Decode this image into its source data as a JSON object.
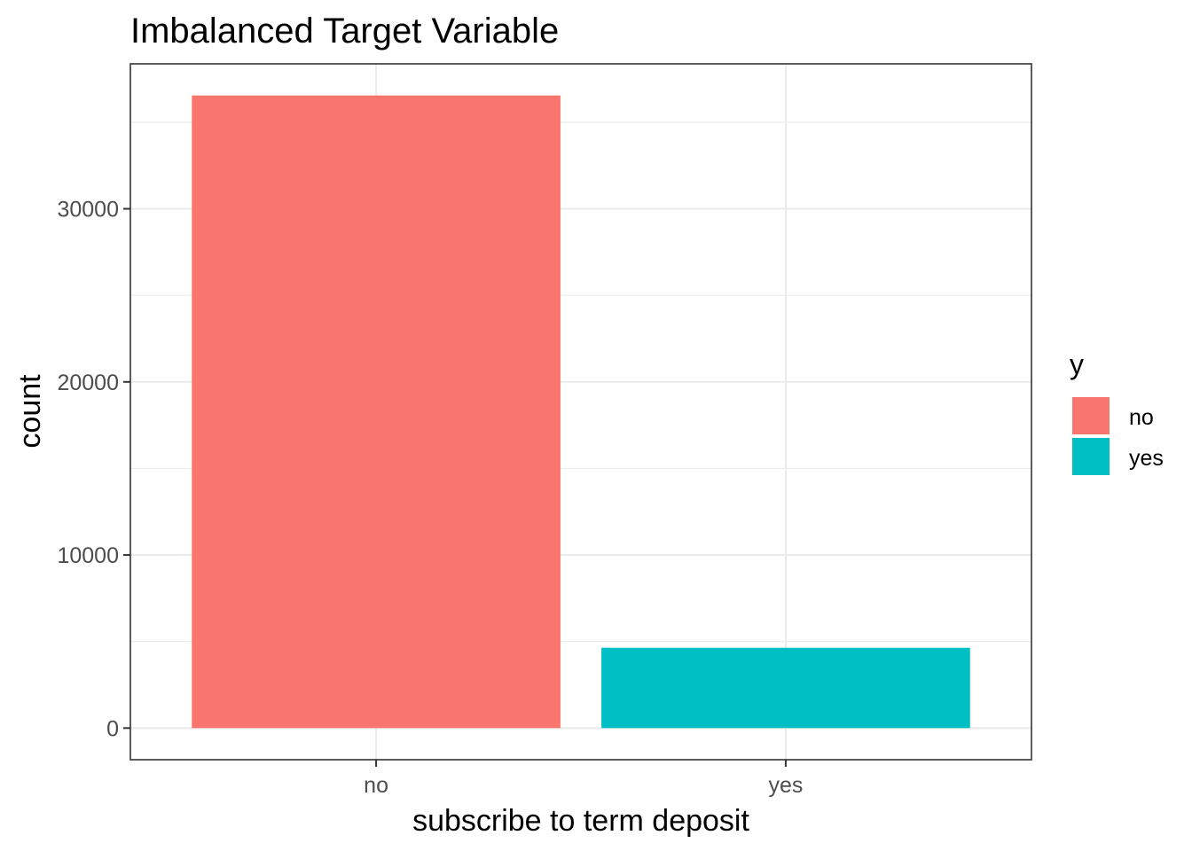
{
  "chart_data": {
    "type": "bar",
    "title": "Imbalanced Target Variable",
    "xlabel": "subscribe to term deposit",
    "ylabel": "count",
    "categories": [
      "no",
      "yes"
    ],
    "values": [
      36548,
      4640
    ],
    "colors": [
      "#F8766D",
      "#00BFC4"
    ],
    "ylim": [
      -1827,
      38375
    ],
    "yticks": [
      0,
      10000,
      20000,
      30000
    ],
    "yticks_minor": [
      5000,
      15000,
      25000,
      35000
    ],
    "grid": true,
    "legend": {
      "title": "y",
      "position": "right",
      "entries": [
        {
          "label": "no",
          "color": "#F8766D"
        },
        {
          "label": "yes",
          "color": "#00BFC4"
        }
      ]
    }
  }
}
